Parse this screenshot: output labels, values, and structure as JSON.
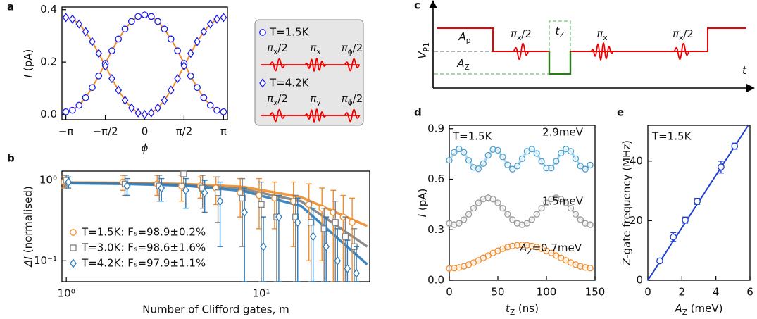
{
  "chart_data": [
    {
      "type": "scatter",
      "panel_label": "a",
      "xlabel": {
        "main": "ϕ"
      },
      "ylabel": {
        "main": "I",
        "tail": " (pA)"
      },
      "xlim": [
        -3.3,
        3.3
      ],
      "ylim": [
        -0.02,
        0.41
      ],
      "xticks": [
        {
          "value": -3.1416,
          "label": "−π"
        },
        {
          "value": -1.5708,
          "label": "−π/2"
        },
        0,
        {
          "value": 1.5708,
          "label": "π/2"
        },
        {
          "value": 3.1416,
          "label": "π"
        }
      ],
      "yticks": [
        {
          "value": 0,
          "label": "0.0"
        },
        0.2,
        0.4
      ],
      "fit_color": "#f28c28",
      "x": [
        -3.142,
        -2.88,
        -2.618,
        -2.356,
        -2.094,
        -1.833,
        -1.571,
        -1.309,
        -1.047,
        -0.785,
        -0.524,
        -0.262,
        0,
        0.262,
        0.524,
        0.785,
        1.047,
        1.309,
        1.571,
        1.833,
        2.094,
        2.356,
        2.618,
        2.88,
        3.142
      ],
      "series": [
        {
          "name": "T=1.5K",
          "color": "#1a1ae6",
          "marker": "circle",
          "pulses": [
            {
              "main": "π",
              "sub": "x",
              "tail": "/2"
            },
            {
              "main": "π",
              "sub": "x"
            },
            {
              "main": "π",
              "sub": "ϕ",
              "tail": "/2"
            }
          ],
          "values": [
            0.01,
            0.016,
            0.035,
            0.064,
            0.103,
            0.147,
            0.195,
            0.243,
            0.288,
            0.326,
            0.355,
            0.374,
            0.38,
            0.374,
            0.355,
            0.326,
            0.288,
            0.243,
            0.195,
            0.147,
            0.103,
            0.064,
            0.035,
            0.016,
            0.01
          ]
        },
        {
          "name": "T=4.2K",
          "color": "#1a1ae6",
          "marker": "diamond",
          "pulses": [
            {
              "main": "π",
              "sub": "x",
              "tail": "/2"
            },
            {
              "main": "π",
              "sub": "y"
            },
            {
              "main": "π",
              "sub": "ϕ",
              "tail": "/2"
            }
          ],
          "values": [
            0.37,
            0.364,
            0.345,
            0.316,
            0.278,
            0.233,
            0.185,
            0.137,
            0.093,
            0.054,
            0.025,
            0.006,
            0.0,
            0.006,
            0.025,
            0.054,
            0.093,
            0.137,
            0.185,
            0.233,
            0.278,
            0.316,
            0.345,
            0.364,
            0.37
          ]
        }
      ]
    },
    {
      "type": "errorbar",
      "panel_label": "b",
      "xlabel": "Number of Clifford gates, m",
      "ylabel": {
        "main": "ΔI",
        "tail": " (normalised)"
      },
      "xscale": "log",
      "yscale": "log",
      "xlim": [
        0.95,
        36
      ],
      "ylim": [
        0.055,
        1.3
      ],
      "xticks": [
        {
          "value": 1,
          "label": "10⁰"
        },
        {
          "value": 10,
          "label": "10¹"
        }
      ],
      "yticks": [
        {
          "value": 0.1,
          "label": "10⁻¹"
        },
        {
          "value": 1,
          "label": "10⁰"
        }
      ],
      "legend": "lower left",
      "x": [
        1,
        2,
        3,
        4,
        5,
        6,
        8,
        10,
        12,
        15,
        18,
        21,
        24,
        27,
        30
      ],
      "fit_x": [
        1,
        2,
        4,
        8,
        16,
        35
      ],
      "series": [
        {
          "name": "T=1.5K: Fₛ=98.9±0.2%",
          "color": "#f28c28",
          "marker": "circle",
          "values": [
            0.95,
            0.95,
            0.9,
            0.85,
            0.85,
            0.8,
            0.7,
            0.65,
            0.6,
            0.55,
            0.5,
            0.45,
            0.4,
            0.35,
            0.3
          ],
          "errors": [
            0.15,
            0.2,
            0.25,
            0.3,
            0.25,
            0.3,
            0.35,
            0.4,
            0.35,
            0.4,
            0.4,
            0.35,
            0.35,
            0.3,
            0.3
          ],
          "fit": [
            0.94,
            0.93,
            0.9,
            0.83,
            0.62,
            0.27
          ]
        },
        {
          "name": "T=3.0K: Fₛ=98.6±1.6%",
          "color": "#808080",
          "marker": "square",
          "values": [
            1.0,
            0.9,
            0.85,
            1.2,
            0.8,
            0.7,
            0.6,
            0.5,
            0.35,
            0.35,
            0.3,
            0.25,
            0.3,
            0.2,
            0.15
          ],
          "errors": [
            0.15,
            0.25,
            0.3,
            0.3,
            0.35,
            0.4,
            0.45,
            0.45,
            0.3,
            0.3,
            0.25,
            0.2,
            0.25,
            0.15,
            0.1
          ],
          "fit": [
            0.93,
            0.92,
            0.88,
            0.78,
            0.55,
            0.15
          ]
        },
        {
          "name": "T=4.2K: Fₛ=97.9±1.1%",
          "color": "#2b7bba",
          "marker": "diamond",
          "values": [
            0.95,
            0.85,
            0.8,
            0.75,
            0.7,
            0.55,
            0.4,
            0.15,
            0.35,
            0.3,
            0.2,
            0.15,
            0.1,
            0.08,
            0.07
          ],
          "errors": [
            0.15,
            0.2,
            0.25,
            0.3,
            0.3,
            0.4,
            0.4,
            0.2,
            0.3,
            0.3,
            0.25,
            0.2,
            0.15,
            0.1,
            0.08
          ],
          "fit": [
            0.92,
            0.9,
            0.86,
            0.74,
            0.48,
            0.09
          ]
        }
      ]
    },
    {
      "type": "scatter",
      "panel_label": "d",
      "annotation": "T=1.5K",
      "xlabel": {
        "main": "t",
        "sub": "Z",
        "tail": " (ns)"
      },
      "ylabel": {
        "main": "I",
        "tail": " (pA)"
      },
      "xlim": [
        0,
        150
      ],
      "ylim": [
        0,
        0.92
      ],
      "xticks": [
        0,
        50,
        100,
        150
      ],
      "yticks": [
        {
          "value": 0,
          "label": "0.0"
        },
        0.3,
        0.6,
        0.9
      ],
      "x": [
        0,
        5,
        10,
        15,
        20,
        25,
        30,
        35,
        40,
        45,
        50,
        55,
        60,
        65,
        70,
        75,
        80,
        85,
        90,
        95,
        100,
        105,
        110,
        115,
        120,
        125,
        130,
        135,
        140,
        145
      ],
      "series": [
        {
          "name": "2.9meV",
          "color": "#4a9fd0",
          "values": [
            0.712,
            0.76,
            0.78,
            0.76,
            0.712,
            0.67,
            0.662,
            0.693,
            0.742,
            0.777,
            0.772,
            0.733,
            0.685,
            0.66,
            0.678,
            0.722,
            0.766,
            0.779,
            0.753,
            0.706,
            0.666,
            0.666,
            0.707,
            0.755,
            0.779,
            0.766,
            0.722,
            0.678,
            0.66,
            0.684
          ]
        },
        {
          "name": "1.5meV",
          "color": "#999999",
          "values": [
            0.338,
            0.33,
            0.338,
            0.36,
            0.392,
            0.428,
            0.46,
            0.482,
            0.49,
            0.482,
            0.46,
            0.428,
            0.392,
            0.36,
            0.338,
            0.33,
            0.338,
            0.36,
            0.392,
            0.428,
            0.46,
            0.482,
            0.49,
            0.482,
            0.46,
            0.428,
            0.392,
            0.36,
            0.338,
            0.33
          ]
        },
        {
          "name": {
            "main": "A",
            "sub": "Z",
            "tail": "=0.7meV"
          },
          "color": "#f28c28",
          "values": [
            0.07,
            0.072,
            0.076,
            0.083,
            0.093,
            0.105,
            0.118,
            0.133,
            0.147,
            0.162,
            0.175,
            0.187,
            0.197,
            0.204,
            0.208,
            0.21,
            0.208,
            0.204,
            0.197,
            0.187,
            0.175,
            0.162,
            0.147,
            0.133,
            0.118,
            0.105,
            0.093,
            0.083,
            0.076,
            0.072
          ]
        }
      ]
    },
    {
      "type": "errorbar",
      "panel_label": "e",
      "annotation": "T=1.5K",
      "xlabel": {
        "main": "A",
        "sub": "Z",
        "tail": " (meV)"
      },
      "ylabel": {
        "main": "Z",
        "tail": "-gate frequency (MHz)"
      },
      "xlim": [
        0,
        6
      ],
      "ylim": [
        0,
        52
      ],
      "xticks": [
        0,
        2,
        4,
        6
      ],
      "yticks": [
        0,
        20,
        40
      ],
      "x": [
        0.7,
        1.5,
        2.2,
        2.9,
        4.3,
        5.1
      ],
      "fit_x": [
        0,
        5.9
      ],
      "series": [
        {
          "color": "#1f3fd0",
          "marker": "circle",
          "values": [
            6.5,
            14.5,
            20.2,
            26.5,
            38,
            45
          ],
          "errors": [
            0.6,
            1.5,
            1.0,
            1.0,
            2.0,
            1.0
          ],
          "fit": [
            0,
            52
          ]
        }
      ]
    }
  ],
  "pulse_diagram": {
    "panel_label": "c",
    "y_label": {
      "main": "V",
      "sub": "P1"
    },
    "level_p": {
      "main": "A",
      "sub": "p"
    },
    "level_z": {
      "main": "A",
      "sub": "Z"
    },
    "pulses": [
      {
        "main": "π",
        "sub": "x",
        "tail": "/2"
      },
      {
        "main": "π",
        "sub": "x"
      },
      {
        "main": "π",
        "sub": "x",
        "tail": "/2"
      }
    ],
    "wait": {
      "main": "t",
      "sub": "Z"
    },
    "time_label": {
      "main": "t"
    }
  }
}
